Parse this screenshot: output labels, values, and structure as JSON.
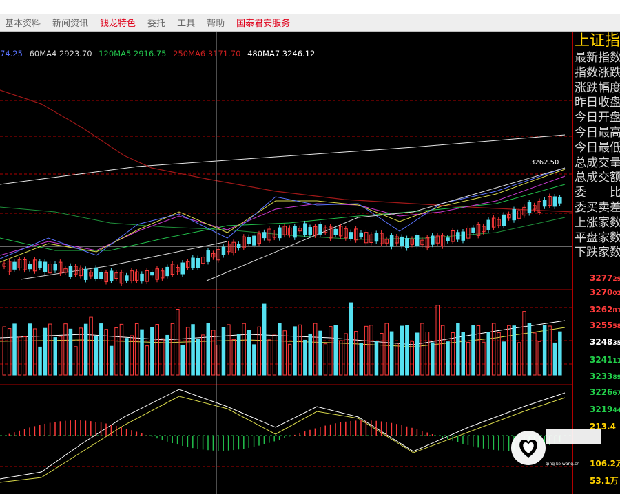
{
  "menu": {
    "items": [
      {
        "label": "基本资料",
        "highlight": false
      },
      {
        "label": "新闻资讯",
        "highlight": false
      },
      {
        "label": "钱龙特色",
        "highlight": true
      },
      {
        "label": "委托",
        "highlight": false
      },
      {
        "label": "工具",
        "highlight": false
      },
      {
        "label": "帮助",
        "highlight": false
      },
      {
        "label": "国泰君安服务",
        "highlight": true
      }
    ]
  },
  "ma_legend": [
    {
      "text": "74.25",
      "color": "#5a73ff"
    },
    {
      "text": "60MA4 2923.70",
      "color": "#d8d8d8"
    },
    {
      "text": "120MA5 2916.75",
      "color": "#22c04b"
    },
    {
      "text": "250MA6 3171.70",
      "color": "#c81e1e"
    },
    {
      "text": "480MA7 3246.12",
      "color": "#ffffff"
    }
  ],
  "price_label": "3262.50",
  "panel": {
    "title": "上证指",
    "rows": [
      "最新指数",
      "指数涨跌",
      "涨跌幅度",
      "昨日收盘",
      "今日开盘",
      "今日最高",
      "今日最低",
      "总成交量",
      "总成交额",
      "委　　比",
      "委买卖差",
      "上涨家数",
      "平盘家数",
      "下跌家数"
    ]
  },
  "axis": {
    "values": [
      "3277",
      "3270",
      "3262",
      "3255",
      "3248",
      "3241",
      "3233",
      "3226",
      "3219",
      "213.4",
      "106.2万",
      "53.1万"
    ],
    "suffixes": [
      "29",
      "02",
      "81",
      "58",
      "35",
      "11",
      "89",
      "67",
      "44",
      "",
      "",
      ""
    ],
    "colors": [
      "#ff3b3b",
      "#ff3b3b",
      "#ff3b3b",
      "#ff3b3b",
      "#ffffff",
      "#22d04a",
      "#22d04a",
      "#22d04a",
      "#22d04a",
      "#ffd200",
      "#ffd200",
      "#ffd200"
    ]
  },
  "colors": {
    "up": "#ff3b3b",
    "down": "#55e0f0",
    "grid_red": "#b00000"
  },
  "icons": {
    "watermark": "heart-logo-icon"
  }
}
